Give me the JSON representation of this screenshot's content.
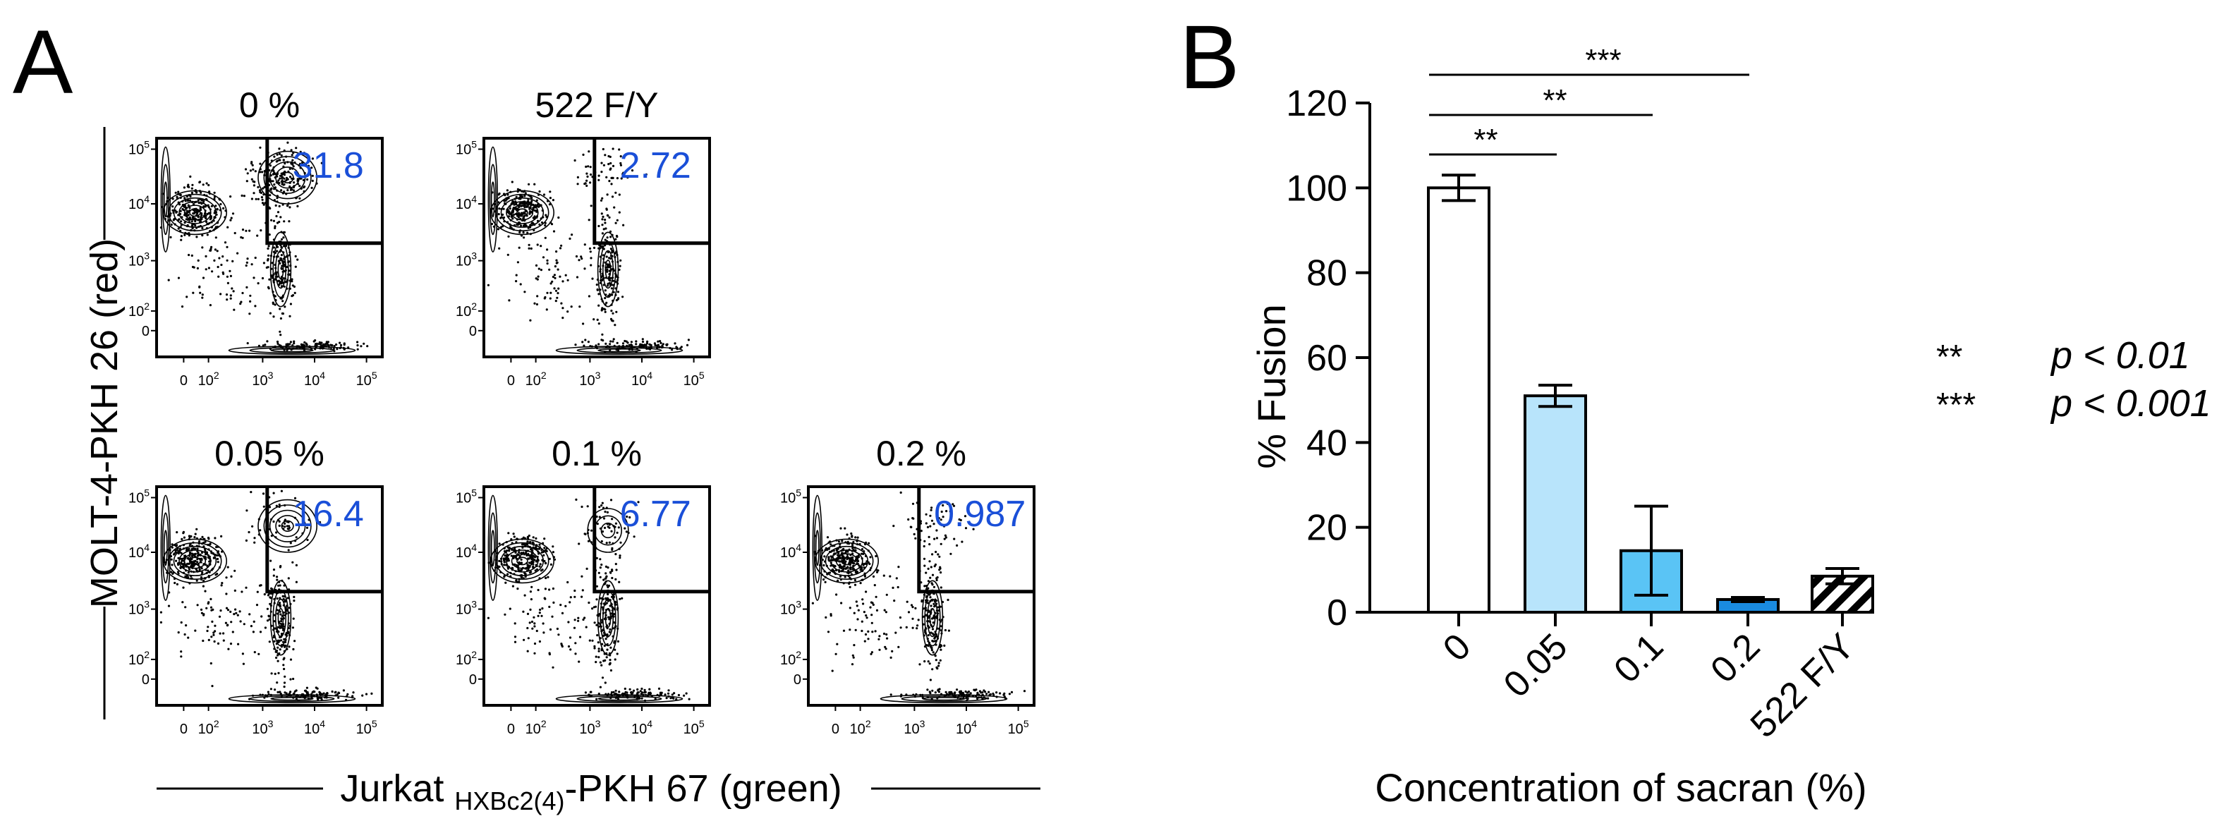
{
  "panel_a": {
    "label": "A",
    "y_axis_label": "MOLT-4-PKH 26 (red)",
    "x_axis_label_main": "Jurkat ",
    "x_axis_label_sub": "HXBc2(4)",
    "x_axis_label_tail": "-PKH 67 (green)",
    "tick_labels": {
      "zero": "0",
      "p2": "10",
      "p3": "10",
      "p4": "10",
      "p5": "10",
      "e2": "2",
      "e3": "3",
      "e4": "4",
      "e5": "5"
    },
    "plots": [
      {
        "title": "0 %",
        "gate_value": "31.8"
      },
      {
        "title": "522 F/Y",
        "gate_value": "2.72"
      },
      {
        "title": "0.05 %",
        "gate_value": "16.4"
      },
      {
        "title": "0.1 %",
        "gate_value": "6.77"
      },
      {
        "title": "0.2 %",
        "gate_value": "0.987"
      }
    ],
    "colors": {
      "gate_value": "#1a4fd8",
      "line": "#000000"
    }
  },
  "chart_data": {
    "type": "bar",
    "panel_label": "B",
    "title": "",
    "xlabel": "Concentration of sacran (%)",
    "ylabel": "% Fusion",
    "ylim": [
      0,
      120
    ],
    "yticks": [
      0,
      20,
      40,
      60,
      80,
      100,
      120
    ],
    "categories": [
      "0",
      "0.05",
      "0.1",
      "0.2",
      "522 F/Y"
    ],
    "values": [
      100,
      51,
      14.5,
      3,
      8.5
    ],
    "errors": [
      3,
      2.5,
      10.5,
      0.5,
      1.8
    ],
    "bar_colors": [
      "#ffffff",
      "#b8e4fb",
      "#5ac4f5",
      "#1a8be0",
      "hatched"
    ],
    "significance": [
      {
        "from": 0,
        "to": 3,
        "label": "***"
      },
      {
        "from": 0,
        "to": 2,
        "label": "**"
      },
      {
        "from": 0,
        "to": 1,
        "label": "**"
      }
    ],
    "legend": [
      {
        "stars": "**",
        "text": "p < 0.01"
      },
      {
        "stars": "***",
        "text": "p < 0.001"
      }
    ]
  }
}
